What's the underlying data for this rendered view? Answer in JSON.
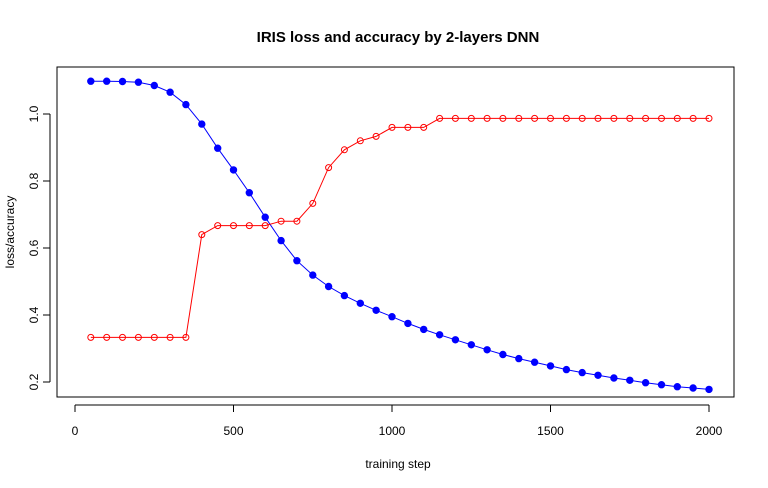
{
  "chart_data": {
    "type": "line",
    "title": "IRIS loss and accuracy by 2-layers DNN",
    "xlabel": "training step",
    "ylabel": "loss/accuracy",
    "xlim": [
      0,
      2000
    ],
    "ylim": [
      0.2,
      1.1
    ],
    "x_ticks": [
      0,
      500,
      1000,
      1500,
      2000
    ],
    "y_ticks": [
      0.2,
      0.4,
      0.6,
      0.8,
      1.0
    ],
    "x_tick_labels": [
      "0",
      "500",
      "1000",
      "1500",
      "2000"
    ],
    "y_tick_labels": [
      "0.2",
      "0.4",
      "0.6",
      "0.8",
      "1.0"
    ],
    "grid": false,
    "x": [
      50,
      100,
      150,
      200,
      250,
      300,
      350,
      400,
      450,
      500,
      550,
      600,
      650,
      700,
      750,
      800,
      850,
      900,
      950,
      1000,
      1050,
      1100,
      1150,
      1200,
      1250,
      1300,
      1350,
      1400,
      1450,
      1500,
      1550,
      1600,
      1650,
      1700,
      1750,
      1800,
      1850,
      1900,
      1950,
      2000
    ],
    "series": [
      {
        "color": "#0000ff",
        "marker": "filled-circle",
        "values": [
          1.098,
          1.098,
          1.097,
          1.095,
          1.085,
          1.065,
          1.028,
          0.97,
          0.898,
          0.833,
          0.765,
          0.692,
          0.622,
          0.562,
          0.519,
          0.485,
          0.458,
          0.435,
          0.414,
          0.395,
          0.375,
          0.357,
          0.341,
          0.326,
          0.311,
          0.296,
          0.282,
          0.27,
          0.259,
          0.248,
          0.237,
          0.228,
          0.22,
          0.212,
          0.205,
          0.198,
          0.192,
          0.186,
          0.182,
          0.178
        ]
      },
      {
        "color": "#ff0000",
        "marker": "open-circle",
        "values": [
          0.333,
          0.333,
          0.333,
          0.333,
          0.333,
          0.333,
          0.333,
          0.64,
          0.667,
          0.667,
          0.667,
          0.667,
          0.68,
          0.68,
          0.733,
          0.84,
          0.893,
          0.92,
          0.933,
          0.96,
          0.96,
          0.96,
          0.987,
          0.987,
          0.987,
          0.987,
          0.987,
          0.987,
          0.987,
          0.987,
          0.987,
          0.987,
          0.987,
          0.987,
          0.987,
          0.987,
          0.987,
          0.987,
          0.987,
          0.987
        ]
      }
    ]
  }
}
